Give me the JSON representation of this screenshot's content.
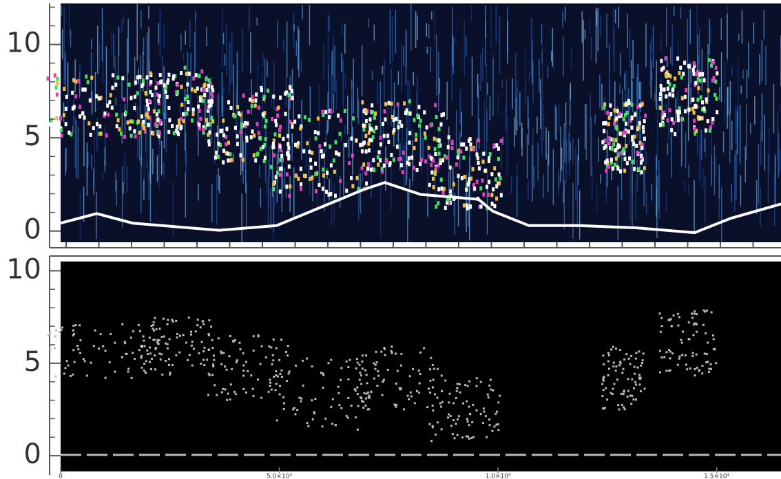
{
  "chart_data": [
    {
      "type": "heatmap",
      "colormap": "rainbow",
      "xlim": [
        0,
        16470
      ],
      "ylim": [
        -0.6,
        12.2
      ],
      "yticks": [
        0,
        5,
        10
      ]
    },
    {
      "type": "heatmap",
      "colormap": "gray",
      "xlim": [
        0,
        16470
      ],
      "ylim": [
        -0.85,
        10.5
      ],
      "yticks": [
        0,
        5,
        10
      ],
      "xticks": [
        0,
        {
          "value": 5000,
          "label": "5.0×10³"
        },
        {
          "value": 10000,
          "label": "1.0×10⁴"
        },
        {
          "value": 15000,
          "label": "1.5×10⁴"
        }
      ]
    }
  ]
}
